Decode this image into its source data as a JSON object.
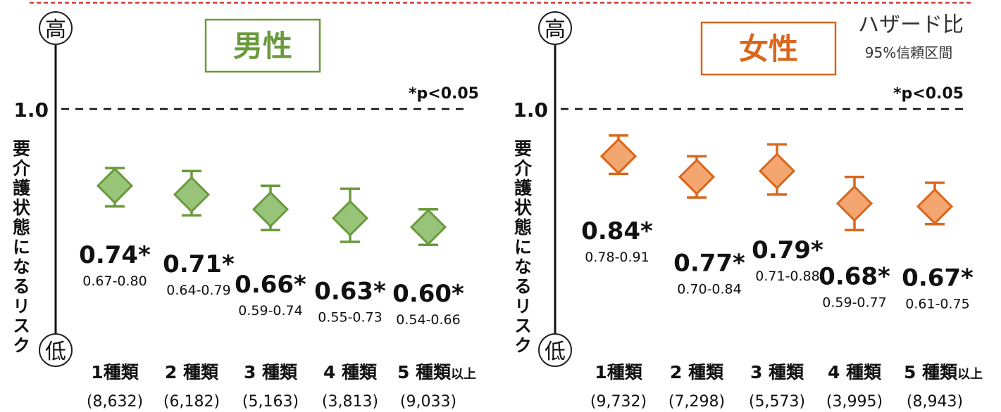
{
  "legend": {
    "title": "ハザード比",
    "subtitle": "95%信頼区間"
  },
  "note": "*p<0.05",
  "ylabel": "要介護状態になるリスク",
  "yhigh": "高",
  "ylow": "低",
  "ref_label": "1.0",
  "colors": {
    "male": "#6a9a3c",
    "male_fill": "#98c47a",
    "female": "#d9661c",
    "female_fill": "#f3a670",
    "top_rule": "#d33b36"
  },
  "chart_data": [
    {
      "type": "scatter",
      "title": "男性",
      "reference_line": 1.0,
      "categories": [
        "1種類",
        "2 種類",
        "3 種類",
        "4 種類",
        "5 種類"
      ],
      "category_suffix": [
        "",
        "",
        "",
        "",
        "以上"
      ],
      "counts": [
        "(8,632)",
        "(6,182)",
        "(5,163)",
        "(3,813)",
        "(9,033)"
      ],
      "values": [
        0.74,
        0.71,
        0.66,
        0.63,
        0.6
      ],
      "ci_low": [
        0.67,
        0.64,
        0.59,
        0.55,
        0.54
      ],
      "ci_high": [
        0.8,
        0.79,
        0.74,
        0.73,
        0.66
      ],
      "value_labels": [
        "0.74*",
        "0.71*",
        "0.66*",
        "0.63*",
        "0.60*"
      ],
      "ci_labels": [
        "0.67-0.80",
        "0.64-0.79",
        "0.59-0.74",
        "0.55-0.73",
        "0.54-0.66"
      ]
    },
    {
      "type": "scatter",
      "title": "女性",
      "reference_line": 1.0,
      "categories": [
        "1種類",
        "2 種類",
        "3 種類",
        "4 種類",
        "5 種類"
      ],
      "category_suffix": [
        "",
        "",
        "",
        "",
        "以上"
      ],
      "counts": [
        "(9,732)",
        "(7,298)",
        "(5,573)",
        "(3,995)",
        "(8,943)"
      ],
      "values": [
        0.84,
        0.77,
        0.79,
        0.68,
        0.67
      ],
      "ci_low": [
        0.78,
        0.7,
        0.71,
        0.59,
        0.61
      ],
      "ci_high": [
        0.91,
        0.84,
        0.88,
        0.77,
        0.75
      ],
      "value_labels": [
        "0.84*",
        "0.77*",
        "0.79*",
        "0.68*",
        "0.67*"
      ],
      "ci_labels": [
        "0.78-0.91",
        "0.70-0.84",
        "0.71-0.88",
        "0.59-0.77",
        "0.61-0.75"
      ]
    }
  ]
}
